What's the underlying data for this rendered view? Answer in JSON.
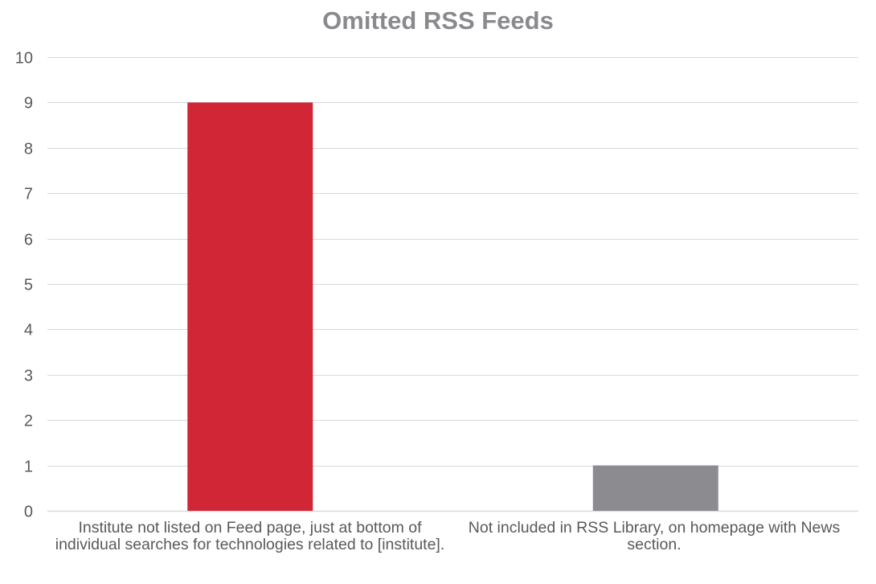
{
  "chart_data": {
    "type": "bar",
    "title": "Omitted RSS Feeds",
    "xlabel": "",
    "ylabel": "",
    "categories": [
      "Institute not listed on Feed page, just at bottom of individual searches for technologies related to [institute].",
      "Not included in RSS Library, on homepage with News section."
    ],
    "values": [
      9,
      1
    ],
    "bar_colors": [
      "#d12636",
      "#8c8c90"
    ],
    "ylim": [
      0,
      10
    ],
    "yticks": [
      0,
      1,
      2,
      3,
      4,
      5,
      6,
      7,
      8,
      9,
      10
    ],
    "grid": true,
    "legend": "none"
  },
  "colors": {
    "title": "#8a8a8e",
    "tick_text": "#595959",
    "gridline": "#d9d9d9"
  }
}
